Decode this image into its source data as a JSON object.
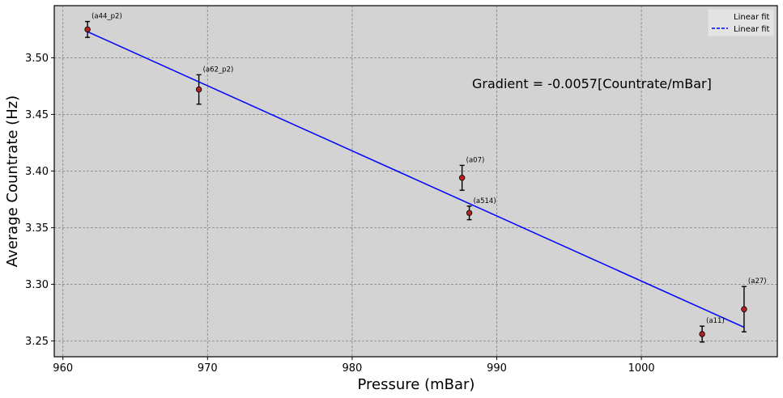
{
  "chart_data": {
    "type": "scatter",
    "xlabel": "Pressure (mBar)",
    "ylabel": "Average Countrate (Hz)",
    "xlim": [
      959.4,
      1009.4
    ],
    "ylim": [
      3.236,
      3.546
    ],
    "xticks": [
      960,
      970,
      980,
      990,
      1000
    ],
    "yticks": [
      3.25,
      3.3,
      3.35,
      3.4,
      3.45,
      3.5
    ],
    "xtick_labels": [
      "960",
      "970",
      "980",
      "990",
      "1000"
    ],
    "ytick_labels": [
      "3.25",
      "3.30",
      "3.35",
      "3.40",
      "3.45",
      "3.50"
    ],
    "grid": true,
    "background": "#d3d3d3",
    "points": [
      {
        "label": "(a44_p2)",
        "x": 961.7,
        "y": 3.525,
        "err": 0.007
      },
      {
        "label": "(a62_p2)",
        "x": 969.4,
        "y": 3.472,
        "err": 0.013
      },
      {
        "label": "(a07)",
        "x": 987.6,
        "y": 3.394,
        "err": 0.011
      },
      {
        "label": "(a514)",
        "x": 988.1,
        "y": 3.363,
        "err": 0.006
      },
      {
        "label": "(a11)",
        "x": 1004.2,
        "y": 3.256,
        "err": 0.007
      },
      {
        "label": "(a27)",
        "x": 1007.1,
        "y": 3.278,
        "err": 0.02
      }
    ],
    "point_color": "#b22222",
    "fit": {
      "label": "Linear fit",
      "color": "#0000ff",
      "x": [
        961.7,
        1007.1
      ],
      "y": [
        3.523,
        3.262
      ]
    },
    "annotation": "Gradient = -0.0057[Countrate/mBar]",
    "legend": {
      "placement": "top-right",
      "entries": [
        "Linear fit",
        "Linear fit"
      ]
    }
  }
}
